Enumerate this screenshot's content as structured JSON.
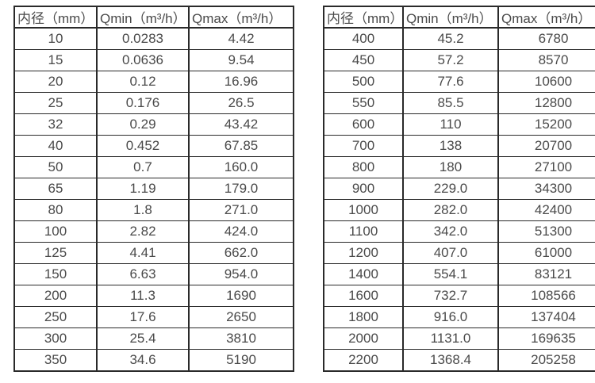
{
  "page": {
    "background": "#ffffff",
    "border_color": "#2a2a2a",
    "text_color": "#4a4a4a",
    "description": "Flow meter inner-diameter vs minimum and maximum flow rate tables"
  },
  "tables": [
    {
      "name": "flow-table-small-diameters",
      "headers": [
        "内径（mm）",
        "Qmin（m³/h）",
        "Qmax（m³/h）"
      ],
      "rows": [
        [
          "10",
          "0.0283",
          "4.42"
        ],
        [
          "15",
          "0.0636",
          "9.54"
        ],
        [
          "20",
          "0.12",
          "16.96"
        ],
        [
          "25",
          "0.176",
          "26.5"
        ],
        [
          "32",
          "0.29",
          "43.42"
        ],
        [
          "40",
          "0.452",
          "67.85"
        ],
        [
          "50",
          "0.7",
          "160.0"
        ],
        [
          "65",
          "1.19",
          "179.0"
        ],
        [
          "80",
          "1.8",
          "271.0"
        ],
        [
          "100",
          "2.82",
          "424.0"
        ],
        [
          "125",
          "4.41",
          "662.0"
        ],
        [
          "150",
          "6.63",
          "954.0"
        ],
        [
          "200",
          "11.3",
          "1690"
        ],
        [
          "250",
          "17.6",
          "2650"
        ],
        [
          "300",
          "25.4",
          "3810"
        ],
        [
          "350",
          "34.6",
          "5190"
        ]
      ]
    },
    {
      "name": "flow-table-large-diameters",
      "headers": [
        "内径（mm）",
        "Qmin（m³/h）",
        "Qmax（m³/h）"
      ],
      "rows": [
        [
          "400",
          "45.2",
          "6780"
        ],
        [
          "450",
          "57.2",
          "8570"
        ],
        [
          "500",
          "77.6",
          "10600"
        ],
        [
          "550",
          "85.5",
          "12800"
        ],
        [
          "600",
          "110",
          "15200"
        ],
        [
          "700",
          "138",
          "20700"
        ],
        [
          "800",
          "180",
          "27100"
        ],
        [
          "900",
          "229.0",
          "34300"
        ],
        [
          "1000",
          "282.0",
          "42400"
        ],
        [
          "1100",
          "342.0",
          "51300"
        ],
        [
          "1200",
          "407.0",
          "61000"
        ],
        [
          "1400",
          "554.1",
          "83121"
        ],
        [
          "1600",
          "732.7",
          "108566"
        ],
        [
          "1800",
          "916.0",
          "137404"
        ],
        [
          "2000",
          "1131.0",
          "169635"
        ],
        [
          "2200",
          "1368.4",
          "205258"
        ]
      ]
    }
  ]
}
